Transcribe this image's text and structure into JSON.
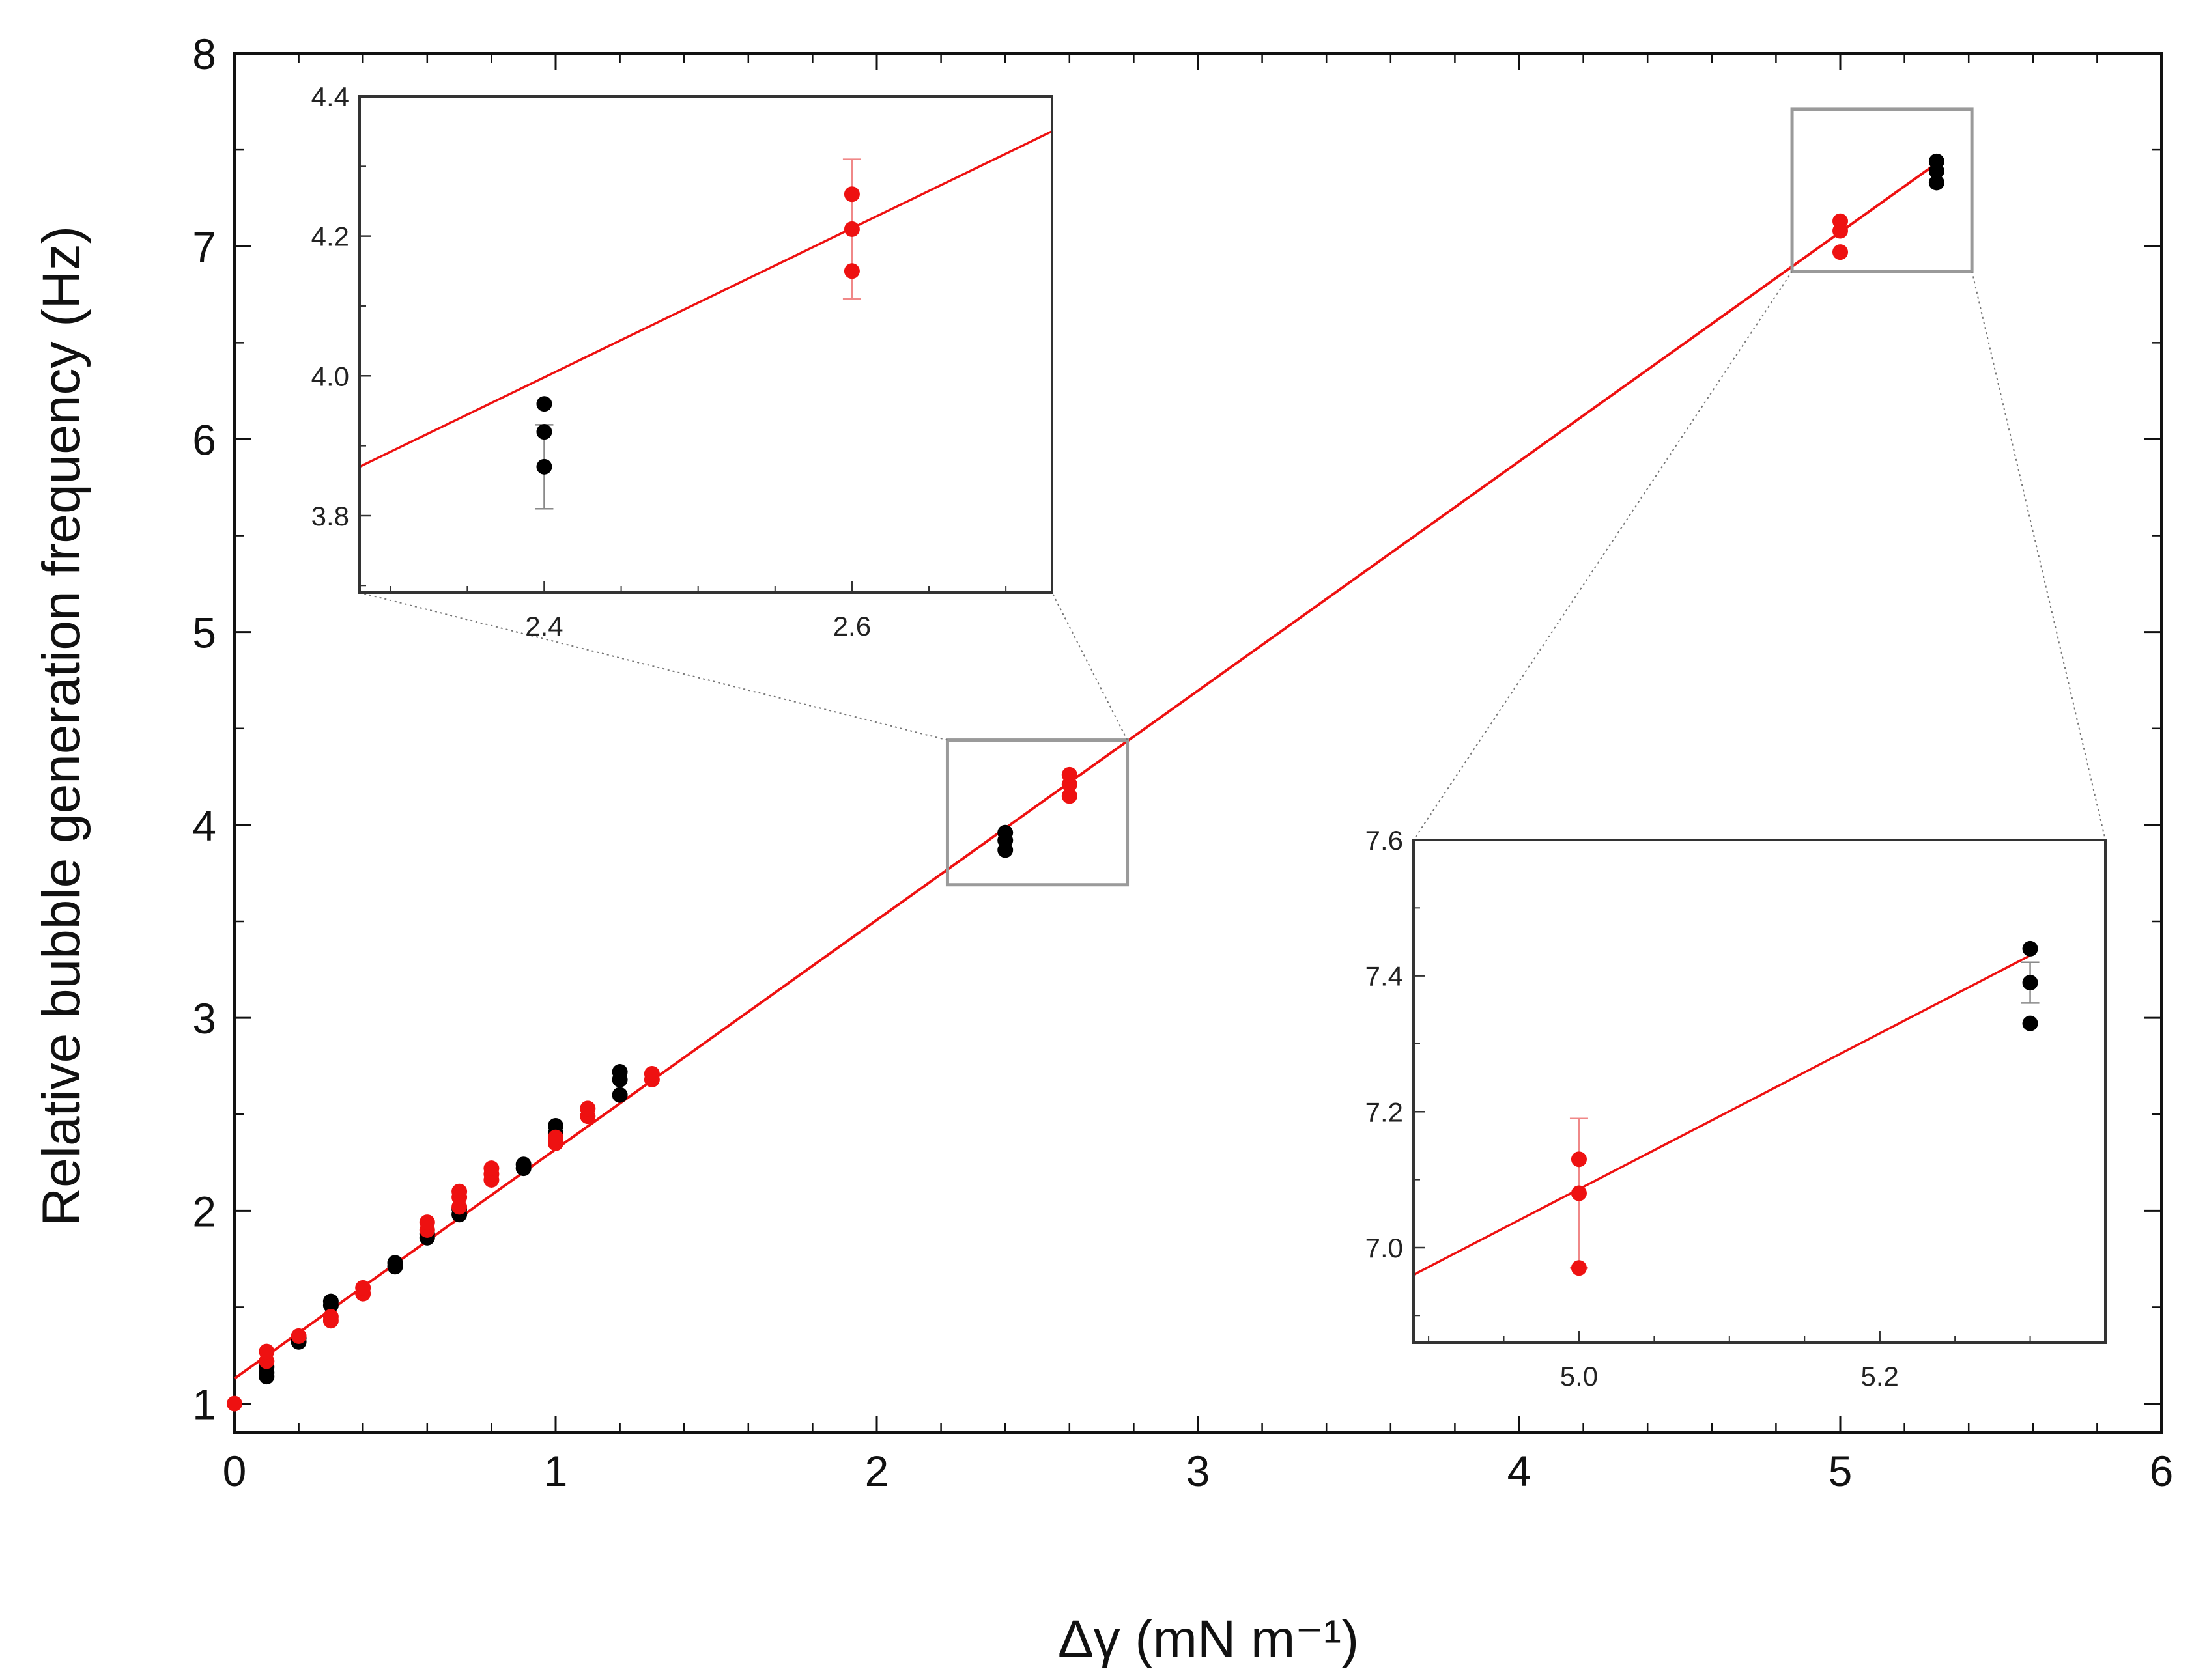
{
  "chart_data": {
    "type": "scatter",
    "title": "",
    "xlabel": "Δγ (mN m⁻¹)",
    "ylabel": "Relative bubble generation frequency (Hz)",
    "xlim": [
      0,
      6
    ],
    "ylim": [
      0.85,
      8
    ],
    "x_ticks": [
      0,
      1,
      2,
      3,
      4,
      5,
      6
    ],
    "y_ticks": [
      1,
      2,
      3,
      4,
      5,
      6,
      7,
      8
    ],
    "grid": false,
    "fit_line": {
      "name": "linear fit",
      "color": "#ee1111",
      "x": [
        0,
        5.3
      ],
      "y": [
        1.13,
        7.43
      ]
    },
    "series": [
      {
        "name": "black",
        "color": "#000000",
        "points": [
          {
            "x": 0.1,
            "y": 1.14
          },
          {
            "x": 0.1,
            "y": 1.16
          },
          {
            "x": 0.1,
            "y": 1.19
          },
          {
            "x": 0.2,
            "y": 1.32
          },
          {
            "x": 0.2,
            "y": 1.34
          },
          {
            "x": 0.3,
            "y": 1.51
          },
          {
            "x": 0.3,
            "y": 1.53
          },
          {
            "x": 0.5,
            "y": 1.71
          },
          {
            "x": 0.5,
            "y": 1.73
          },
          {
            "x": 0.6,
            "y": 1.86
          },
          {
            "x": 0.6,
            "y": 1.88
          },
          {
            "x": 0.7,
            "y": 1.98
          },
          {
            "x": 0.7,
            "y": 2.01
          },
          {
            "x": 0.9,
            "y": 2.22
          },
          {
            "x": 0.9,
            "y": 2.24
          },
          {
            "x": 1.0,
            "y": 2.4
          },
          {
            "x": 1.0,
            "y": 2.44
          },
          {
            "x": 1.2,
            "y": 2.6
          },
          {
            "x": 1.2,
            "y": 2.68
          },
          {
            "x": 1.2,
            "y": 2.72
          },
          {
            "x": 2.4,
            "y": 3.87
          },
          {
            "x": 2.4,
            "y": 3.92
          },
          {
            "x": 2.4,
            "y": 3.96
          },
          {
            "x": 5.3,
            "y": 7.33
          },
          {
            "x": 5.3,
            "y": 7.39
          },
          {
            "x": 5.3,
            "y": 7.44
          }
        ]
      },
      {
        "name": "red",
        "color": "#ee1111",
        "points": [
          {
            "x": 0.0,
            "y": 1.0
          },
          {
            "x": 0.1,
            "y": 1.22
          },
          {
            "x": 0.1,
            "y": 1.27
          },
          {
            "x": 0.2,
            "y": 1.35
          },
          {
            "x": 0.3,
            "y": 1.43
          },
          {
            "x": 0.3,
            "y": 1.45
          },
          {
            "x": 0.4,
            "y": 1.57
          },
          {
            "x": 0.4,
            "y": 1.6
          },
          {
            "x": 0.6,
            "y": 1.9
          },
          {
            "x": 0.6,
            "y": 1.94
          },
          {
            "x": 0.7,
            "y": 2.02
          },
          {
            "x": 0.7,
            "y": 2.07
          },
          {
            "x": 0.7,
            "y": 2.1
          },
          {
            "x": 0.8,
            "y": 2.16
          },
          {
            "x": 0.8,
            "y": 2.19
          },
          {
            "x": 0.8,
            "y": 2.22
          },
          {
            "x": 1.0,
            "y": 2.35
          },
          {
            "x": 1.0,
            "y": 2.38
          },
          {
            "x": 1.1,
            "y": 2.49
          },
          {
            "x": 1.1,
            "y": 2.53
          },
          {
            "x": 1.3,
            "y": 2.68
          },
          {
            "x": 1.3,
            "y": 2.71
          },
          {
            "x": 2.6,
            "y": 4.15
          },
          {
            "x": 2.6,
            "y": 4.21
          },
          {
            "x": 2.6,
            "y": 4.26
          },
          {
            "x": 5.0,
            "y": 6.97
          },
          {
            "x": 5.0,
            "y": 7.08
          },
          {
            "x": 5.0,
            "y": 7.13
          }
        ]
      }
    ],
    "insets": [
      {
        "name": "inset-1",
        "location": "top-left",
        "xlim": [
          2.28,
          2.73
        ],
        "ylim": [
          3.69,
          4.4
        ],
        "x_ticks": [
          2.4,
          2.6
        ],
        "x_tick_labels": [
          "2.4",
          "2.6"
        ],
        "y_ticks": [
          3.8,
          4.0,
          4.2,
          4.4
        ],
        "y_tick_labels": [
          "3.8",
          "4.0",
          "4.2",
          "4.4"
        ],
        "zoom_region": {
          "xlim": [
            2.22,
            2.78
          ],
          "ylim": [
            3.69,
            4.44
          ]
        },
        "fit_line": {
          "x": [
            2.28,
            2.73
          ],
          "y": [
            3.87,
            4.35
          ]
        },
        "series": [
          {
            "name": "black",
            "color": "#000000",
            "points": [
              {
                "x": 2.4,
                "y": 3.87,
                "err": 0.06
              },
              {
                "x": 2.4,
                "y": 3.92
              },
              {
                "x": 2.4,
                "y": 3.96
              }
            ]
          },
          {
            "name": "red",
            "color": "#ee1111",
            "points": [
              {
                "x": 2.6,
                "y": 4.15
              },
              {
                "x": 2.6,
                "y": 4.21,
                "err": 0.1
              },
              {
                "x": 2.6,
                "y": 4.26
              }
            ]
          }
        ]
      },
      {
        "name": "inset-2",
        "location": "bottom-right",
        "xlim": [
          4.89,
          5.35
        ],
        "ylim": [
          6.86,
          7.6
        ],
        "x_ticks": [
          5.0,
          5.2
        ],
        "x_tick_labels": [
          "5.0",
          "5.2"
        ],
        "y_ticks": [
          7.0,
          7.2,
          7.4,
          7.6
        ],
        "y_tick_labels": [
          "7.0",
          "7.2",
          "7.4",
          "7.6"
        ],
        "zoom_region": {
          "xlim": [
            4.85,
            5.41
          ],
          "ylim": [
            6.87,
            7.71
          ]
        },
        "fit_line": {
          "x": [
            4.89,
            5.3
          ],
          "y": [
            6.96,
            7.43
          ]
        },
        "series": [
          {
            "name": "red",
            "color": "#ee1111",
            "points": [
              {
                "x": 5.0,
                "y": 6.97
              },
              {
                "x": 5.0,
                "y": 7.08,
                "err": 0.11
              },
              {
                "x": 5.0,
                "y": 7.13
              }
            ]
          },
          {
            "name": "black",
            "color": "#000000",
            "points": [
              {
                "x": 5.3,
                "y": 7.33
              },
              {
                "x": 5.3,
                "y": 7.39,
                "err": 0.03
              },
              {
                "x": 5.3,
                "y": 7.44
              }
            ]
          }
        ]
      }
    ]
  }
}
